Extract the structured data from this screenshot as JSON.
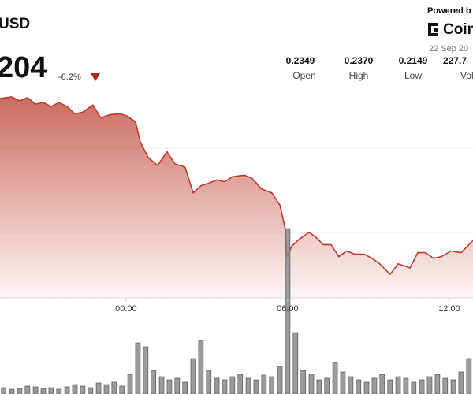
{
  "header": {
    "pair": "USD",
    "price": "204",
    "change": "-6.2%",
    "powered_by": "Powered b",
    "brand": "Coin",
    "date": "22 Sep 20"
  },
  "stats": [
    {
      "value": "0.2349",
      "label": "Open"
    },
    {
      "value": "0.2370",
      "label": "High"
    },
    {
      "value": "0.2149",
      "label": "Low"
    },
    {
      "value": "227.7",
      "label": "Vol"
    }
  ],
  "chart_data": {
    "type": "area",
    "color": "#c0392b",
    "x": [
      -4.68,
      -4.24,
      -3.95,
      -3.66,
      -3.37,
      -3.07,
      -2.78,
      -2.49,
      -2.19,
      -1.9,
      -1.61,
      -1.23,
      -0.94,
      -0.59,
      -0.23,
      0.06,
      0.35,
      0.53,
      0.82,
      1.17,
      1.52,
      1.81,
      2.19,
      2.49,
      2.78,
      3.07,
      3.37,
      3.66,
      3.95,
      4.39,
      4.68,
      5.03,
      5.41,
      5.71,
      5.91,
      5.97,
      6.15,
      6.44,
      6.79,
      7.02,
      7.32,
      7.61,
      7.9,
      8.19,
      8.49,
      8.84,
      9.13,
      9.42,
      9.8,
      10.1,
      10.39,
      10.54,
      10.83,
      11.12,
      11.41,
      11.71,
      12.06,
      12.44,
      12.88
    ],
    "values": [
      0.2367,
      0.2369,
      0.2364,
      0.2368,
      0.236,
      0.2362,
      0.2357,
      0.2362,
      0.2357,
      0.2348,
      0.235,
      0.2359,
      0.2343,
      0.2347,
      0.2348,
      0.2345,
      0.2338,
      0.2313,
      0.2294,
      0.2284,
      0.2301,
      0.2286,
      0.2282,
      0.225,
      0.2259,
      0.2262,
      0.2266,
      0.2264,
      0.227,
      0.2272,
      0.2268,
      0.2255,
      0.225,
      0.2235,
      0.2206,
      0.2171,
      0.2184,
      0.2193,
      0.2201,
      0.2196,
      0.2186,
      0.2186,
      0.2171,
      0.2178,
      0.2174,
      0.2174,
      0.2169,
      0.2162,
      0.2149,
      0.2162,
      0.2159,
      0.2157,
      0.2176,
      0.2176,
      0.2169,
      0.2171,
      0.2178,
      0.2176,
      0.2191
    ],
    "xlim": [
      -4.68,
      12.88
    ],
    "ylim": [
      0.2118,
      0.2489
    ],
    "xticks": [
      {
        "value": 0,
        "label": "00:00"
      },
      {
        "value": 6,
        "label": "06:00"
      },
      {
        "value": 12,
        "label": "12:00"
      }
    ],
    "volume": {
      "color": "#8a8a8a",
      "y2lim": [
        0,
        210
      ],
      "x": [
        -4.54,
        -4.24,
        -3.95,
        -3.66,
        -3.36,
        -3.07,
        -2.78,
        -2.49,
        -2.19,
        -1.9,
        -1.61,
        -1.32,
        -1.02,
        -0.73,
        -0.44,
        -0.15,
        0.15,
        0.44,
        0.73,
        1.02,
        1.32,
        1.61,
        1.9,
        2.19,
        2.49,
        2.78,
        3.07,
        3.37,
        3.66,
        3.95,
        4.24,
        4.54,
        4.83,
        5.12,
        5.41,
        5.71,
        6.0,
        6.29,
        6.58,
        6.88,
        7.17,
        7.46,
        7.76,
        8.05,
        8.34,
        8.63,
        8.93,
        9.22,
        9.51,
        9.8,
        10.1,
        10.39,
        10.68,
        10.98,
        11.27,
        11.56,
        11.85,
        12.15,
        12.44,
        12.73
      ],
      "values": [
        8,
        6,
        7,
        10,
        9,
        7,
        8,
        6,
        9,
        12,
        10,
        8,
        14,
        12,
        15,
        10,
        25,
        65,
        60,
        30,
        22,
        18,
        20,
        15,
        45,
        68,
        30,
        20,
        18,
        22,
        25,
        20,
        18,
        24,
        22,
        35,
        210,
        78,
        30,
        25,
        18,
        20,
        40,
        28,
        22,
        18,
        15,
        20,
        25,
        18,
        22,
        20,
        15,
        18,
        22,
        25,
        20,
        18,
        28,
        45
      ]
    }
  }
}
